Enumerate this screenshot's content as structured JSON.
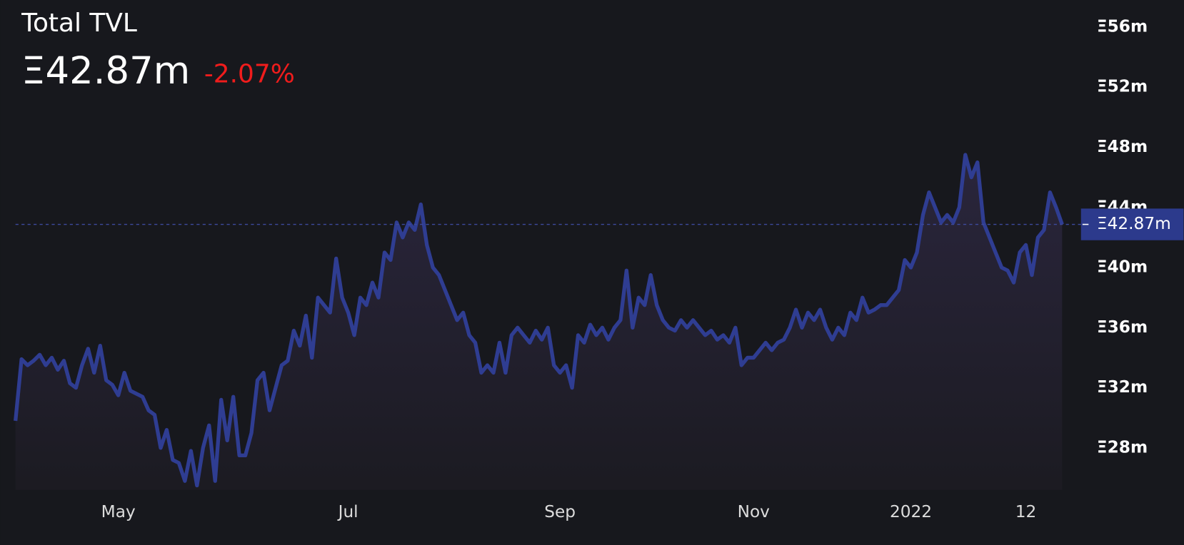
{
  "chart_data": {
    "type": "line",
    "title": "Total TVL",
    "value": "Ξ42.87m",
    "change": "-2.07%",
    "change_color": "#f01c1c",
    "color": "#2f3d92",
    "grid": false,
    "categories": [
      null,
      null,
      null,
      null,
      null,
      null,
      null,
      null,
      null,
      null,
      null,
      null,
      null,
      null,
      null,
      null,
      null,
      "May",
      null,
      null,
      null,
      null,
      null,
      null,
      null,
      null,
      null,
      null,
      null,
      null,
      null,
      null,
      null,
      null,
      null,
      null,
      null,
      null,
      null,
      null,
      null,
      null,
      null,
      null,
      null,
      null,
      null,
      null,
      null,
      null,
      null,
      null,
      null,
      null,
      null,
      "Jul",
      null,
      null,
      null,
      null,
      null,
      null,
      null,
      null,
      null,
      null,
      null,
      null,
      null,
      null,
      null,
      null,
      null,
      null,
      null,
      null,
      null,
      null,
      null,
      null,
      null,
      null,
      null,
      null,
      null,
      null,
      null,
      null,
      null,
      null,
      "Sep",
      null,
      null,
      null,
      null,
      null,
      null,
      null,
      null,
      null,
      null,
      null,
      null,
      null,
      null,
      null,
      null,
      null,
      null,
      null,
      null,
      null,
      null,
      null,
      null,
      null,
      null,
      null,
      null,
      null,
      null,
      null,
      "Nov",
      null,
      null,
      null,
      null,
      null,
      null,
      null,
      null,
      null,
      null,
      null,
      null,
      null,
      null,
      null,
      null,
      null,
      null,
      null,
      null,
      null,
      null,
      null,
      null,
      null,
      "2022",
      null,
      null,
      null,
      null,
      null,
      null,
      null,
      null,
      null,
      null,
      null,
      null,
      null,
      null,
      null,
      null,
      null,
      null,
      "12",
      null,
      null,
      null,
      null,
      null,
      null
    ],
    "values": [
      29.8,
      33.9,
      33.5,
      33.8,
      34.2,
      33.5,
      34.0,
      33.2,
      33.8,
      32.3,
      32.0,
      33.5,
      34.6,
      33.0,
      34.8,
      32.5,
      32.2,
      31.5,
      33.0,
      31.8,
      31.6,
      31.4,
      30.5,
      30.2,
      28.0,
      29.2,
      27.2,
      27.0,
      25.8,
      27.8,
      25.5,
      28.0,
      29.5,
      25.8,
      31.2,
      28.5,
      31.4,
      27.5,
      27.5,
      29.0,
      32.5,
      33.0,
      30.5,
      32.0,
      33.5,
      33.8,
      35.8,
      34.8,
      36.8,
      34.0,
      38.0,
      37.5,
      37.0,
      40.6,
      38.0,
      37.0,
      35.5,
      38.0,
      37.5,
      39.0,
      38.0,
      41.0,
      40.5,
      43.0,
      42.0,
      43.0,
      42.5,
      44.2,
      41.5,
      40.0,
      39.5,
      38.5,
      37.5,
      36.5,
      37.0,
      35.5,
      35.0,
      33.0,
      33.5,
      33.0,
      35.0,
      33.0,
      35.5,
      36.0,
      35.5,
      35.0,
      35.8,
      35.2,
      36.0,
      33.5,
      33.0,
      33.5,
      32.0,
      35.5,
      35.0,
      36.2,
      35.5,
      36.0,
      35.2,
      36.0,
      36.5,
      39.8,
      36.0,
      38.0,
      37.5,
      39.5,
      37.5,
      36.5,
      36.0,
      35.8,
      36.5,
      36.0,
      36.5,
      36.0,
      35.5,
      35.8,
      35.2,
      35.5,
      35.0,
      36.0,
      33.5,
      34.0,
      34.0,
      34.5,
      35.0,
      34.5,
      35.0,
      35.2,
      36.0,
      37.2,
      36.0,
      37.0,
      36.5,
      37.2,
      36.0,
      35.2,
      36.0,
      35.5,
      37.0,
      36.5,
      38.0,
      37.0,
      37.2,
      37.5,
      37.5,
      38.0,
      38.5,
      40.5,
      40.0,
      41.0,
      43.5,
      45.0,
      44.0,
      43.0,
      43.5,
      43.0,
      44.0,
      47.5,
      46.0,
      47.0,
      43.0,
      42.0,
      41.0,
      40.0,
      39.8,
      39.0,
      41.0,
      41.5,
      39.5,
      42.0,
      42.5,
      45.0,
      44.0,
      42.87
    ],
    "ylim": [
      25.2,
      57.8
    ],
    "yticks": [
      {
        "value": 28,
        "label": "Ξ28m"
      },
      {
        "value": 32,
        "label": "Ξ32m"
      },
      {
        "value": 36,
        "label": "Ξ36m"
      },
      {
        "value": 40,
        "label": "Ξ40m"
      },
      {
        "value": 44,
        "label": "Ξ44m"
      },
      {
        "value": 48,
        "label": "Ξ48m"
      },
      {
        "value": 52,
        "label": "Ξ52m"
      },
      {
        "value": 56,
        "label": "Ξ56m"
      }
    ]
  }
}
